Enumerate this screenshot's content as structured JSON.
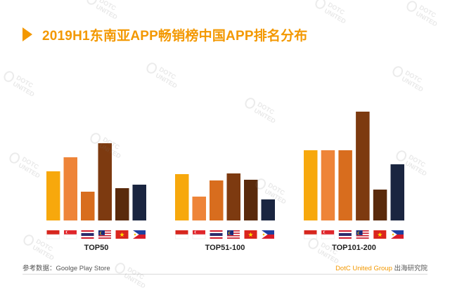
{
  "title": "2019H1东南亚APP畅销榜中国APP排名分布",
  "footer": {
    "source": "参考数据：Goolge Play Store",
    "brand": "DotC United Group",
    "institute": " 出海研究院"
  },
  "watermark_text": "DOTC UNITED",
  "colors": {
    "accent": "#f39800",
    "bars": [
      "#f7a80c",
      "#ee8438",
      "#d86d1e",
      "#7d3a10",
      "#5a2a0c",
      "#1a2540"
    ]
  },
  "flags": [
    "indonesia-flag",
    "singapore-flag",
    "thailand-flag",
    "malaysia-flag",
    "vietnam-flag",
    "philippines-flag"
  ],
  "chart_data": [
    {
      "type": "bar",
      "title": "TOP50",
      "categories": [
        "",
        "",
        "",
        "",
        "",
        ""
      ],
      "values": [
        7,
        9,
        4.1,
        11,
        4.6,
        5.1
      ],
      "ylim": [
        0,
        16
      ]
    },
    {
      "type": "bar",
      "title": "TOP51-100",
      "categories": [
        "",
        "",
        "",
        "",
        "",
        ""
      ],
      "values": [
        6.6,
        3.4,
        5.7,
        6.7,
        5.8,
        3.0
      ],
      "ylim": [
        0,
        16
      ]
    },
    {
      "type": "bar",
      "title": "TOP101-200",
      "categories": [
        "",
        "",
        "",
        "",
        "",
        ""
      ],
      "values": [
        10.0,
        10.0,
        10.0,
        15.5,
        4.4,
        8.0
      ],
      "ylim": [
        0,
        16
      ]
    }
  ]
}
